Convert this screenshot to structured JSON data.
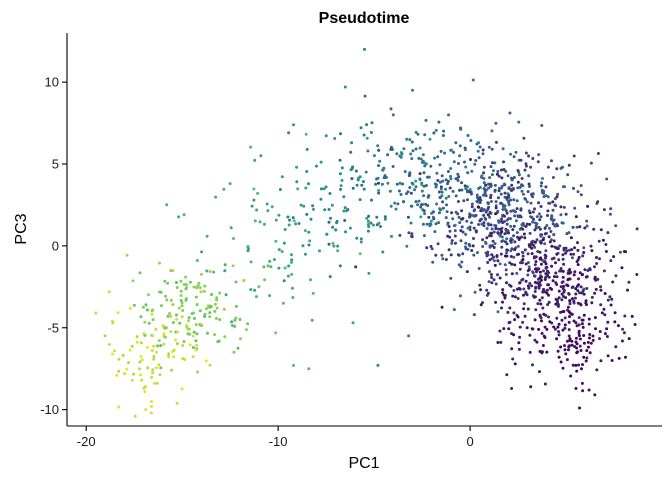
{
  "chart_data": {
    "type": "scatter",
    "title": "Pseudotime",
    "xlabel": "PC1",
    "ylabel": "PC3",
    "xlim": [
      -21,
      10
    ],
    "ylim": [
      -11,
      13
    ],
    "x_ticks": [
      -20,
      -10,
      0
    ],
    "x_tick_labels": [
      "-20",
      "-10",
      "0"
    ],
    "y_ticks": [
      -10,
      -5,
      0,
      5,
      10
    ],
    "y_tick_labels": [
      "-10",
      "-5",
      "0",
      "5",
      "10"
    ],
    "grid": false,
    "legend": "none",
    "colormap": "viridis",
    "colormap_stops": [
      "#440154",
      "#3b528b",
      "#21918c",
      "#5ec962",
      "#fde725"
    ],
    "color_encodes": "pseudotime",
    "marker_size_px": 1.5,
    "points": [
      {
        "x": -5.5,
        "y": 12.0,
        "t": 0.45
      },
      {
        "x": -6.5,
        "y": 9.7,
        "t": 0.5
      },
      {
        "x": -3.0,
        "y": 9.5,
        "t": 0.45
      },
      {
        "x": -9.2,
        "y": 7.4,
        "t": 0.55
      },
      {
        "x": -10.9,
        "y": 5.5,
        "t": 0.58
      },
      {
        "x": -14.9,
        "y": 1.9,
        "t": 0.66
      },
      {
        "x": -12.5,
        "y": 3.8,
        "t": 0.62
      },
      {
        "x": -19.5,
        "y": -4.1,
        "t": 0.92
      },
      {
        "x": -18.8,
        "y": -2.8,
        "t": 0.92
      },
      {
        "x": -16.9,
        "y": -10.0,
        "t": 0.95
      },
      {
        "x": -16.6,
        "y": -9.8,
        "t": 0.95
      },
      {
        "x": -17.0,
        "y": -8.7,
        "t": 0.92
      },
      {
        "x": -18.0,
        "y": -7.8,
        "t": 0.92
      },
      {
        "x": -18.4,
        "y": -7.9,
        "t": 0.94
      },
      {
        "x": -16.3,
        "y": -8.4,
        "t": 0.9
      },
      {
        "x": -14.2,
        "y": -7.7,
        "t": 0.86
      },
      {
        "x": -12.3,
        "y": -6.5,
        "t": 0.8
      },
      {
        "x": -11.0,
        "y": -2.5,
        "t": 0.76
      },
      {
        "x": -9.2,
        "y": -7.3,
        "t": 0.7
      },
      {
        "x": -8.4,
        "y": -7.5,
        "t": 0.68
      },
      {
        "x": -6.1,
        "y": -4.7,
        "t": 0.6
      },
      {
        "x": -4.8,
        "y": -7.3,
        "t": 0.48
      },
      {
        "x": -3.2,
        "y": -5.5,
        "t": 0.42
      },
      {
        "x": 5.7,
        "y": -9.9,
        "t": 0.02
      },
      {
        "x": 6.2,
        "y": -8.8,
        "t": 0.04
      },
      {
        "x": 6.5,
        "y": -9.1,
        "t": 0.03
      },
      {
        "x": 7.4,
        "y": -7.0,
        "t": 0.03
      },
      {
        "x": 8.1,
        "y": -6.8,
        "t": 0.02
      },
      {
        "x": 8.6,
        "y": -4.8,
        "t": 0.03
      },
      {
        "x": 8.2,
        "y": -2.7,
        "t": 0.04
      },
      {
        "x": 6.5,
        "y": -2.0,
        "t": 0.05
      },
      {
        "x": 5.6,
        "y": 0.2,
        "t": 0.1
      },
      {
        "x": 2.5,
        "y": 4.6,
        "t": 0.18
      },
      {
        "x": -0.5,
        "y": 7.2,
        "t": 0.28
      },
      {
        "x": -4.0,
        "y": 8.0,
        "t": 0.4
      },
      {
        "x": -7.5,
        "y": 3.6,
        "t": 0.55
      },
      {
        "x": -15.8,
        "y": -3.3,
        "t": 0.8
      },
      {
        "x": -14.6,
        "y": -5.4,
        "t": 0.82
      },
      {
        "x": -15.7,
        "y": -6.6,
        "t": 0.86
      },
      {
        "x": -13.3,
        "y": -4.0,
        "t": 0.78
      }
    ],
    "clusters": [
      {
        "cx": 1.5,
        "cy": 1.8,
        "sx": 2.2,
        "sy": 2.0,
        "n": 550,
        "t_low": 0.12,
        "t_high": 0.35
      },
      {
        "cx": 4.2,
        "cy": -2.3,
        "sx": 1.8,
        "sy": 1.9,
        "n": 380,
        "t_low": 0.03,
        "t_high": 0.15
      },
      {
        "cx": 5.6,
        "cy": -5.5,
        "sx": 1.3,
        "sy": 1.3,
        "n": 110,
        "t_low": 0.0,
        "t_high": 0.06
      },
      {
        "cx": -2.5,
        "cy": 4.0,
        "sx": 2.0,
        "sy": 1.8,
        "n": 220,
        "t_low": 0.3,
        "t_high": 0.45
      },
      {
        "cx": -6.5,
        "cy": 2.5,
        "sx": 2.0,
        "sy": 2.3,
        "n": 90,
        "t_low": 0.45,
        "t_high": 0.58
      },
      {
        "cx": -10.5,
        "cy": 0.0,
        "sx": 2.0,
        "sy": 2.4,
        "n": 70,
        "t_low": 0.55,
        "t_high": 0.72
      },
      {
        "cx": -14.5,
        "cy": -4.0,
        "sx": 1.6,
        "sy": 1.6,
        "n": 130,
        "t_low": 0.72,
        "t_high": 0.86
      },
      {
        "cx": -16.5,
        "cy": -6.5,
        "sx": 1.2,
        "sy": 1.4,
        "n": 80,
        "t_low": 0.85,
        "t_high": 0.98
      }
    ]
  }
}
